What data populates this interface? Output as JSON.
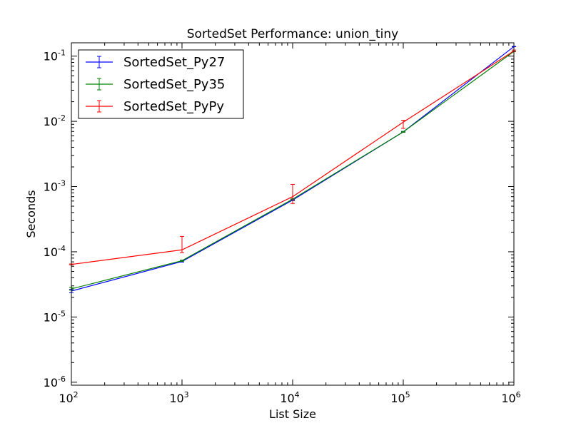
{
  "chart_data": {
    "type": "line",
    "title": "SortedSet Performance: union_tiny",
    "xlabel": "List Size",
    "ylabel": "Seconds",
    "xscale": "log",
    "yscale": "log",
    "xlim": [
      100,
      1000000
    ],
    "ylim": [
      9e-07,
      0.16
    ],
    "grid": false,
    "legend_position": "top-left",
    "x_ticks": [
      {
        "value": 100,
        "base": "10",
        "exp": "2"
      },
      {
        "value": 1000,
        "base": "10",
        "exp": "3"
      },
      {
        "value": 10000,
        "base": "10",
        "exp": "4"
      },
      {
        "value": 100000,
        "base": "10",
        "exp": "5"
      },
      {
        "value": 1000000,
        "base": "10",
        "exp": "6"
      }
    ],
    "y_ticks": [
      {
        "value": 1e-06,
        "base": "10",
        "exp": "-6"
      },
      {
        "value": 1e-05,
        "base": "10",
        "exp": "-5"
      },
      {
        "value": 0.0001,
        "base": "10",
        "exp": "-4"
      },
      {
        "value": 0.001,
        "base": "10",
        "exp": "-3"
      },
      {
        "value": 0.01,
        "base": "10",
        "exp": "-2"
      },
      {
        "value": 0.1,
        "base": "10",
        "exp": "-1"
      }
    ],
    "x": [
      100,
      1000,
      10000,
      100000,
      1000000
    ],
    "series": [
      {
        "name": "SortedSet_Py27",
        "color": "#0000ff",
        "values": [
          2.5e-05,
          7.1e-05,
          0.00062,
          0.0069,
          0.14
        ],
        "err_low": [
          2.35e-05,
          6.95e-05,
          0.000605,
          0.0068,
          0.139
        ],
        "err_high": [
          2.65e-05,
          7.25e-05,
          0.000635,
          0.007,
          0.141
        ]
      },
      {
        "name": "SortedSet_Py35",
        "color": "#008000",
        "values": [
          2.7e-05,
          7.3e-05,
          0.00064,
          0.0069,
          0.118
        ],
        "err_low": [
          2.58e-05,
          7.15e-05,
          0.000625,
          0.0068,
          0.117
        ],
        "err_high": [
          2.82e-05,
          7.45e-05,
          0.000655,
          0.007,
          0.119
        ]
      },
      {
        "name": "SortedSet_PyPy",
        "color": "#ff0000",
        "values": [
          6.4e-05,
          0.000107,
          0.0007,
          0.0097,
          0.12
        ],
        "err_low": [
          6.3e-05,
          9.7e-05,
          0.00055,
          0.0078,
          0.118
        ],
        "err_high": [
          6.5e-05,
          0.000172,
          0.00108,
          0.0104,
          0.124
        ]
      }
    ]
  }
}
